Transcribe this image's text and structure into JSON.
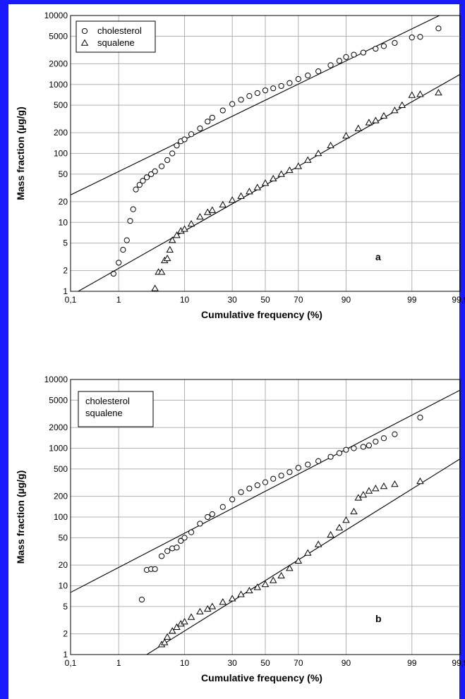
{
  "colors": {
    "frame": "#1a1aff",
    "grid": "#b0b0b0",
    "ink": "#000000"
  },
  "chart_data": [
    {
      "type": "scatter",
      "panel_label": "a",
      "xlabel": "Cumulative frequency (%)",
      "ylabel": "Mass fraction (µg/g)",
      "x_scale": "probability",
      "y_scale": "log",
      "xlim": [
        0.1,
        99.9
      ],
      "ylim": [
        1,
        10000
      ],
      "x_ticks": [
        0.1,
        1,
        10,
        30,
        50,
        70,
        90,
        99,
        99.9
      ],
      "x_tick_labels": [
        "0,1",
        "1",
        "10",
        "30",
        "50",
        "70",
        "90",
        "99",
        "99,9"
      ],
      "y_ticks": [
        1,
        2,
        5,
        10,
        20,
        50,
        100,
        200,
        500,
        1000,
        2000,
        5000,
        10000
      ],
      "y_tick_labels": [
        "1",
        "2",
        "5",
        "10",
        "20",
        "50",
        "100",
        "200",
        "500",
        "1000",
        "2000",
        "5000",
        "10000"
      ],
      "grid": true,
      "legend_position": "top-left",
      "series": [
        {
          "name": "cholesterol",
          "marker": "circle",
          "points": [
            [
              0.8,
              1.8
            ],
            [
              1,
              2.6
            ],
            [
              1.2,
              4
            ],
            [
              1.4,
              5.5
            ],
            [
              1.6,
              10.5
            ],
            [
              1.8,
              15.5
            ],
            [
              2,
              30
            ],
            [
              2.3,
              35
            ],
            [
              2.6,
              40
            ],
            [
              3,
              45
            ],
            [
              3.5,
              50
            ],
            [
              4,
              55
            ],
            [
              5,
              65
            ],
            [
              6,
              80
            ],
            [
              7,
              100
            ],
            [
              8,
              130
            ],
            [
              9,
              150
            ],
            [
              10,
              160
            ],
            [
              12,
              190
            ],
            [
              15,
              230
            ],
            [
              18,
              290
            ],
            [
              20,
              330
            ],
            [
              25,
              420
            ],
            [
              30,
              520
            ],
            [
              35,
              600
            ],
            [
              40,
              680
            ],
            [
              45,
              750
            ],
            [
              50,
              820
            ],
            [
              55,
              880
            ],
            [
              60,
              950
            ],
            [
              65,
              1050
            ],
            [
              70,
              1200
            ],
            [
              75,
              1350
            ],
            [
              80,
              1550
            ],
            [
              85,
              1900
            ],
            [
              88,
              2200
            ],
            [
              90,
              2500
            ],
            [
              92,
              2700
            ],
            [
              94,
              2900
            ],
            [
              96,
              3300
            ],
            [
              97,
              3600
            ],
            [
              98,
              4000
            ],
            [
              99,
              4800
            ],
            [
              99.3,
              4900
            ],
            [
              99.7,
              6500
            ]
          ],
          "fit_line": [
            [
              0.1,
              25
            ],
            [
              99.9,
              14000
            ]
          ]
        },
        {
          "name": "squalene",
          "marker": "triangle",
          "points": [
            [
              4,
              1.1
            ],
            [
              4.5,
              1.9
            ],
            [
              5,
              1.9
            ],
            [
              5.5,
              2.8
            ],
            [
              6,
              3
            ],
            [
              6.5,
              4
            ],
            [
              7,
              5.5
            ],
            [
              8,
              6.5
            ],
            [
              9,
              7.5
            ],
            [
              10,
              8
            ],
            [
              12,
              9.5
            ],
            [
              15,
              12
            ],
            [
              18,
              14
            ],
            [
              20,
              15
            ],
            [
              25,
              18
            ],
            [
              30,
              21
            ],
            [
              35,
              24
            ],
            [
              40,
              28
            ],
            [
              45,
              32
            ],
            [
              50,
              37
            ],
            [
              55,
              43
            ],
            [
              60,
              50
            ],
            [
              65,
              57
            ],
            [
              70,
              65
            ],
            [
              75,
              80
            ],
            [
              80,
              100
            ],
            [
              85,
              130
            ],
            [
              90,
              180
            ],
            [
              93,
              230
            ],
            [
              95,
              280
            ],
            [
              96,
              300
            ],
            [
              97,
              350
            ],
            [
              98,
              420
            ],
            [
              98.5,
              500
            ],
            [
              99,
              700
            ],
            [
              99.3,
              720
            ],
            [
              99.7,
              760
            ]
          ],
          "fit_line": [
            [
              0.15,
              1
            ],
            [
              99.9,
              1400
            ]
          ]
        }
      ]
    },
    {
      "type": "scatter",
      "panel_label": "b",
      "xlabel": "Cumulative frequency (%)",
      "ylabel": "Mass fraction (µg/g)",
      "x_scale": "probability",
      "y_scale": "log",
      "xlim": [
        0.1,
        99.9
      ],
      "ylim": [
        1,
        10000
      ],
      "x_ticks": [
        0.1,
        1,
        10,
        30,
        50,
        70,
        90,
        99,
        99.9
      ],
      "x_tick_labels": [
        "0,1",
        "1",
        "10",
        "30",
        "50",
        "70",
        "90",
        "99",
        "99,9"
      ],
      "y_ticks": [
        1,
        2,
        5,
        10,
        20,
        50,
        100,
        200,
        500,
        1000,
        2000,
        5000,
        10000
      ],
      "y_tick_labels": [
        "1",
        "2",
        "5",
        "10",
        "20",
        "50",
        "100",
        "200",
        "500",
        "1000",
        "2000",
        "5000",
        "10000"
      ],
      "grid": true,
      "legend_position": "top-left",
      "legend_entries": [
        "cholesterol",
        "squalene"
      ],
      "series": [
        {
          "name": "cholesterol",
          "marker": "circle",
          "points": [
            [
              2.5,
              6.3
            ],
            [
              3,
              17
            ],
            [
              3.5,
              17.5
            ],
            [
              4,
              17.5
            ],
            [
              5,
              27
            ],
            [
              6,
              32
            ],
            [
              7,
              35
            ],
            [
              8,
              36
            ],
            [
              9,
              45
            ],
            [
              10,
              50
            ],
            [
              12,
              60
            ],
            [
              15,
              80
            ],
            [
              18,
              100
            ],
            [
              20,
              110
            ],
            [
              25,
              140
            ],
            [
              30,
              180
            ],
            [
              35,
              230
            ],
            [
              40,
              260
            ],
            [
              45,
              290
            ],
            [
              50,
              320
            ],
            [
              55,
              360
            ],
            [
              60,
              400
            ],
            [
              65,
              450
            ],
            [
              70,
              520
            ],
            [
              75,
              580
            ],
            [
              80,
              650
            ],
            [
              85,
              750
            ],
            [
              88,
              850
            ],
            [
              90,
              950
            ],
            [
              92,
              1000
            ],
            [
              94,
              1050
            ],
            [
              95,
              1100
            ],
            [
              96,
              1250
            ],
            [
              97,
              1400
            ],
            [
              98,
              1600
            ],
            [
              99.3,
              2800
            ]
          ],
          "fit_line": [
            [
              0.1,
              8
            ],
            [
              99.9,
              7000
            ]
          ]
        },
        {
          "name": "squalene",
          "marker": "triangle",
          "points": [
            [
              5,
              1.4
            ],
            [
              5.5,
              1.5
            ],
            [
              6,
              1.8
            ],
            [
              7,
              2.2
            ],
            [
              8,
              2.5
            ],
            [
              9,
              2.8
            ],
            [
              10,
              3
            ],
            [
              12,
              3.5
            ],
            [
              15,
              4.2
            ],
            [
              18,
              4.6
            ],
            [
              20,
              5
            ],
            [
              25,
              5.8
            ],
            [
              30,
              6.5
            ],
            [
              35,
              7.5
            ],
            [
              40,
              8.5
            ],
            [
              45,
              9.5
            ],
            [
              50,
              10.5
            ],
            [
              55,
              12
            ],
            [
              60,
              14
            ],
            [
              65,
              18
            ],
            [
              70,
              23
            ],
            [
              75,
              30
            ],
            [
              80,
              40
            ],
            [
              85,
              55
            ],
            [
              88,
              70
            ],
            [
              90,
              90
            ],
            [
              92,
              120
            ],
            [
              93,
              190
            ],
            [
              94,
              210
            ],
            [
              95,
              240
            ],
            [
              96,
              260
            ],
            [
              97,
              280
            ],
            [
              98,
              300
            ],
            [
              99.3,
              330
            ]
          ],
          "fit_line": [
            [
              3,
              1
            ],
            [
              99.9,
              700
            ]
          ]
        }
      ]
    }
  ]
}
